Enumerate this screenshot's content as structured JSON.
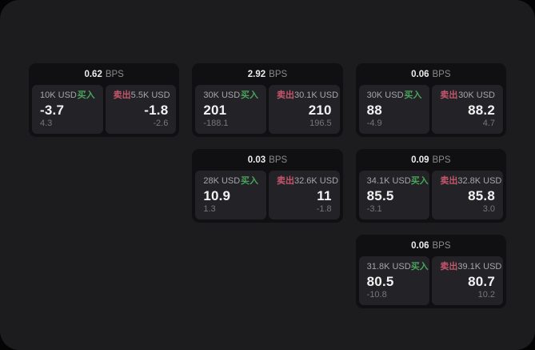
{
  "labels": {
    "bps_unit": "BPS",
    "buy": "买入",
    "sell": "卖出"
  },
  "colors": {
    "window-bg": "#1c1c1e",
    "card-bg": "#101012",
    "panel-bg": "#232327",
    "buy-green": "#4aa35c",
    "sell-red": "#c4566b"
  },
  "cards": [
    {
      "bps": "0.62",
      "buy": {
        "amount": "10K USD",
        "value": "-3.7",
        "delta": "4.3"
      },
      "sell": {
        "amount": "5.5K USD",
        "value": "-1.8",
        "delta": "-2.6"
      }
    },
    {
      "bps": "2.92",
      "buy": {
        "amount": "30K USD",
        "value": "201",
        "delta": "-188.1"
      },
      "sell": {
        "amount": "30.1K USD",
        "value": "210",
        "delta": "196.5"
      }
    },
    {
      "bps": "0.06",
      "buy": {
        "amount": "30K USD",
        "value": "88",
        "delta": "-4.9"
      },
      "sell": {
        "amount": "30K USD",
        "value": "88.2",
        "delta": "4.7"
      }
    },
    {
      "bps": "0.03",
      "buy": {
        "amount": "28K USD",
        "value": "10.9",
        "delta": "1.3"
      },
      "sell": {
        "amount": "32.6K USD",
        "value": "11",
        "delta": "-1.8"
      }
    },
    {
      "bps": "0.09",
      "buy": {
        "amount": "34.1K USD",
        "value": "85.5",
        "delta": "-3.1"
      },
      "sell": {
        "amount": "32.8K USD",
        "value": "85.8",
        "delta": "3.0"
      }
    },
    {
      "bps": "0.06",
      "buy": {
        "amount": "31.8K USD",
        "value": "80.5",
        "delta": "-10.8"
      },
      "sell": {
        "amount": "39.1K USD",
        "value": "80.7",
        "delta": "10.2"
      }
    }
  ]
}
